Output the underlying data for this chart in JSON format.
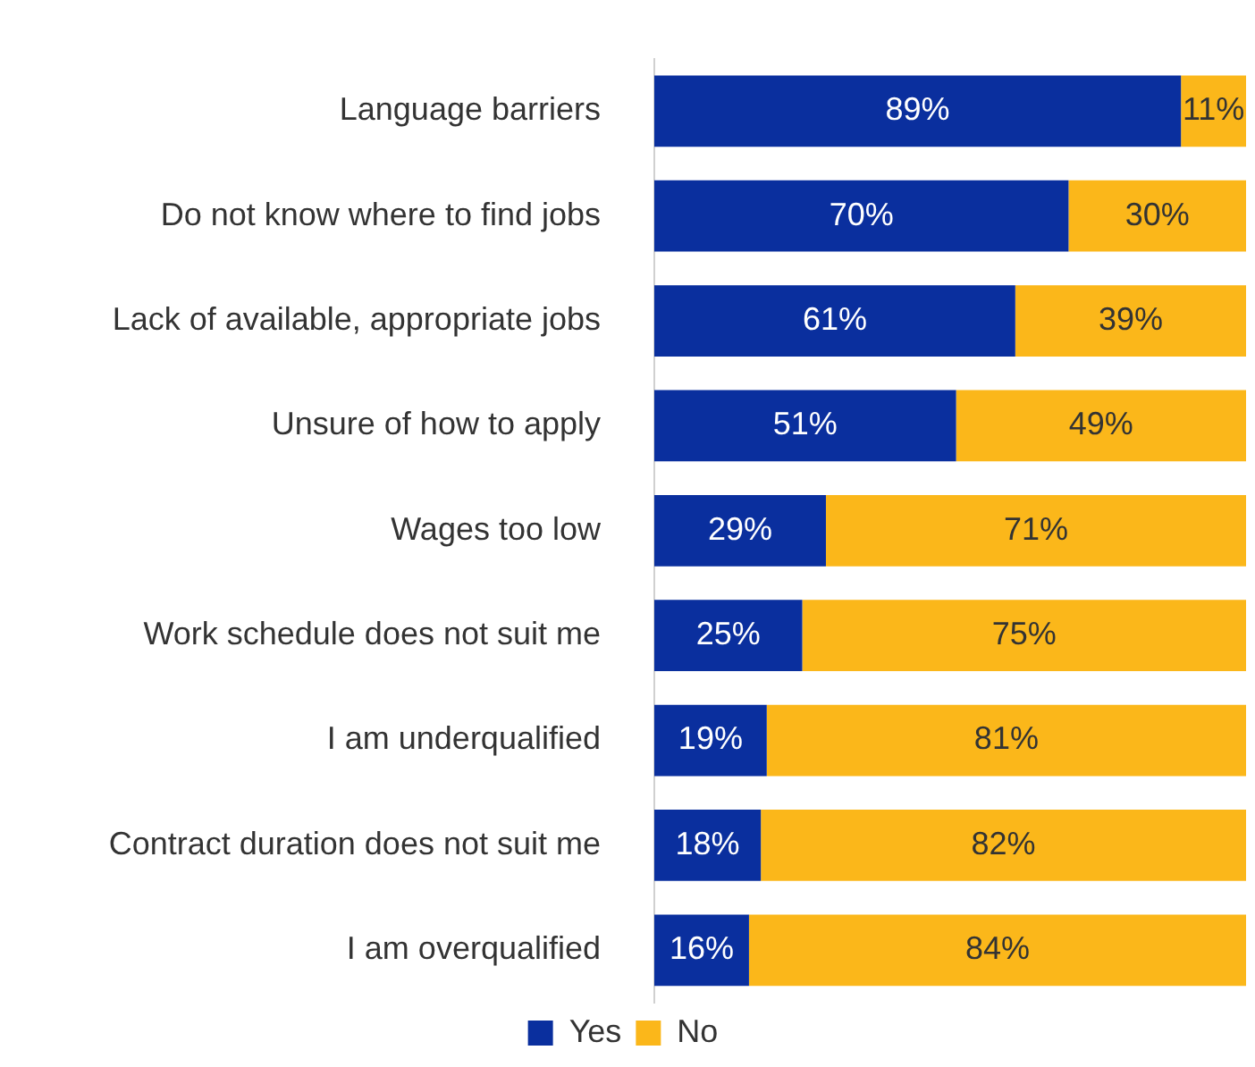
{
  "chart_data": {
    "type": "bar",
    "orientation": "horizontal",
    "stacked": true,
    "categories": [
      "Language barriers",
      "Do not know where to find jobs",
      "Lack of available, appropriate jobs",
      "Unsure of how to apply",
      "Wages too low",
      "Work schedule does not suit me",
      "I am underqualified",
      "Contract duration does not suit me",
      "I am overqualified"
    ],
    "series": [
      {
        "name": "Yes",
        "color": "#0a2f9e",
        "values": [
          89,
          70,
          61,
          51,
          29,
          25,
          19,
          18,
          16
        ],
        "value_labels": [
          "89%",
          "70%",
          "61%",
          "51%",
          "29%",
          "25%",
          "19%",
          "18%",
          "16%"
        ]
      },
      {
        "name": "No",
        "color": "#fbb71a",
        "values": [
          11,
          30,
          39,
          49,
          71,
          75,
          81,
          82,
          84
        ],
        "value_labels": [
          "11%",
          "30%",
          "39%",
          "49%",
          "71%",
          "75%",
          "81%",
          "82%",
          "84%"
        ]
      }
    ],
    "legend": "bottom",
    "tick_labels": "y"
  }
}
